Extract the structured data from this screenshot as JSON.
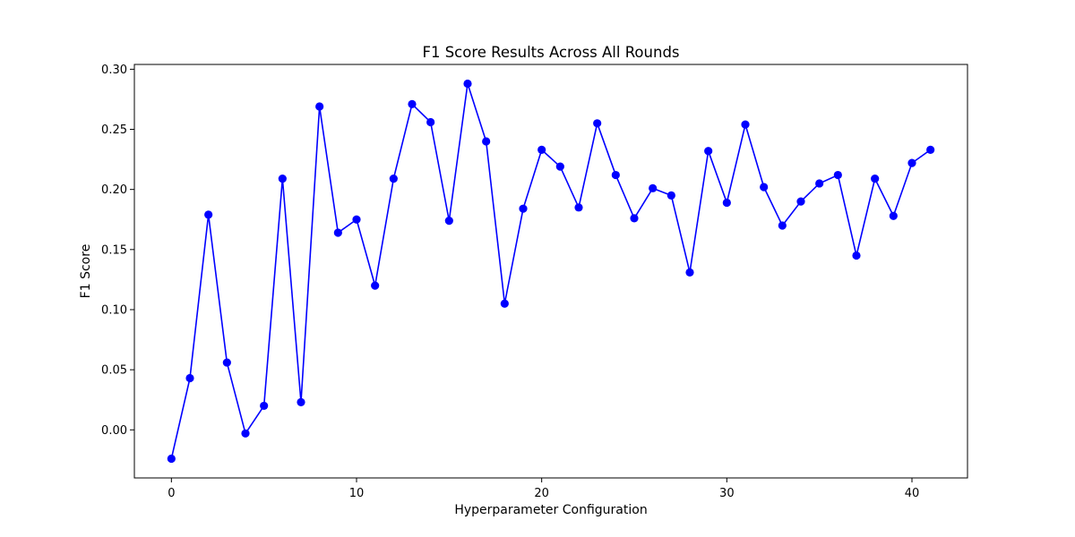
{
  "chart_data": {
    "type": "line",
    "title": "F1 Score Results Across All Rounds",
    "xlabel": "Hyperparameter Configuration",
    "ylabel": "F1 Score",
    "xlim": [
      -2,
      43
    ],
    "ylim": [
      -0.04,
      0.304
    ],
    "xticks": [
      0,
      10,
      20,
      30,
      40
    ],
    "yticks": [
      0.0,
      0.05,
      0.1,
      0.15,
      0.2,
      0.25,
      0.3
    ],
    "ytick_labels": [
      "0.00",
      "0.05",
      "0.10",
      "0.15",
      "0.20",
      "0.25",
      "0.30"
    ],
    "grid": false,
    "line_color": "#0000ff",
    "marker": "circle",
    "x": [
      0,
      1,
      2,
      3,
      4,
      5,
      6,
      7,
      8,
      9,
      10,
      11,
      12,
      13,
      14,
      15,
      16,
      17,
      18,
      19,
      20,
      21,
      22,
      23,
      24,
      25,
      26,
      27,
      28,
      29,
      30,
      31,
      32,
      33,
      34,
      35,
      36,
      37,
      38,
      39,
      40,
      41
    ],
    "values": [
      -0.024,
      0.043,
      0.179,
      0.056,
      -0.003,
      0.02,
      0.209,
      0.023,
      0.269,
      0.164,
      0.175,
      0.12,
      0.209,
      0.271,
      0.256,
      0.174,
      0.288,
      0.24,
      0.105,
      0.184,
      0.233,
      0.219,
      0.185,
      0.255,
      0.212,
      0.176,
      0.201,
      0.195,
      0.131,
      0.232,
      0.189,
      0.254,
      0.202,
      0.17,
      0.19,
      0.205,
      0.212,
      0.145,
      0.209,
      0.178,
      0.222,
      0.233
    ]
  }
}
